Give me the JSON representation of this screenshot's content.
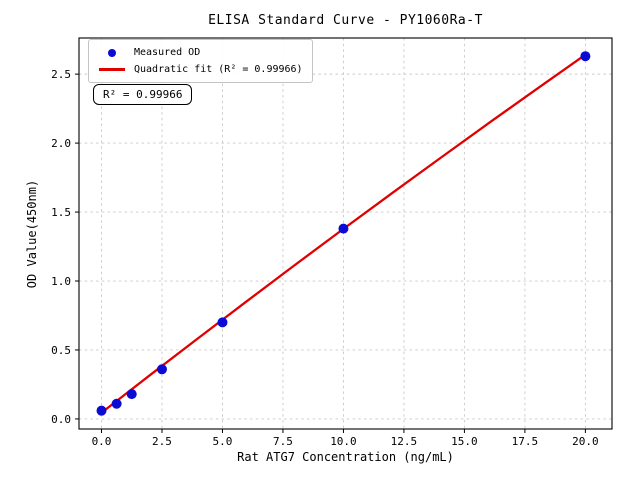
{
  "figure": {
    "background": "#ffffff"
  },
  "chart_data": {
    "type": "scatter",
    "title": "ELISA Standard Curve - PY1060Ra-T",
    "xlabel": "Rat ATG7 Concentration (ng/mL)",
    "ylabel": "OD Value(450nm)",
    "annotation": "R² = 0.99966",
    "xlim": [
      -0.93,
      21.1
    ],
    "ylim": [
      -0.073,
      2.762
    ],
    "x_ticks": [
      0,
      2.5,
      5,
      7.5,
      10,
      12.5,
      15,
      17.5,
      20
    ],
    "x_tick_labels": [
      "0.0",
      "2.5",
      "5.0",
      "7.5",
      "10.0",
      "12.5",
      "15.0",
      "17.5",
      "20.0"
    ],
    "y_ticks": [
      0,
      0.5,
      1,
      1.5,
      2,
      2.5
    ],
    "y_tick_labels": [
      "0.0",
      "0.5",
      "1.0",
      "1.5",
      "2.0",
      "2.5"
    ],
    "grid": true,
    "legend_position": "upper-left",
    "series": [
      {
        "name": "Measured OD",
        "type": "scatter",
        "color": "#0b0bd6",
        "x": [
          0,
          0.625,
          1.25,
          2.5,
          5,
          10,
          20
        ],
        "y": [
          0.06,
          0.11,
          0.18,
          0.36,
          0.7,
          1.38,
          2.63
        ]
      },
      {
        "name": "Quadratic fit (R² = 0.99966)",
        "type": "line",
        "color": "#e00000",
        "r_squared": 0.99966,
        "fit_coefficients": {
          "a": -0.00035,
          "b": 0.1368,
          "c": 0.0447
        },
        "x": [
          0,
          2,
          4,
          6,
          8,
          10,
          12,
          14,
          16,
          18,
          20
        ],
        "y": [
          0.045,
          0.317,
          0.586,
          0.853,
          1.117,
          1.378,
          1.636,
          1.891,
          2.144,
          2.394,
          2.641
        ]
      }
    ]
  }
}
